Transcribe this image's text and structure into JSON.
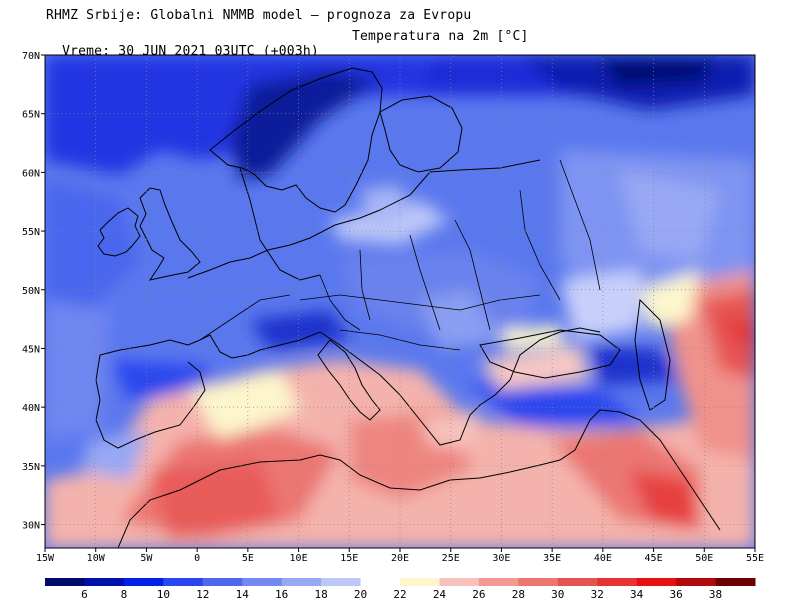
{
  "header": {
    "line1": "RHMZ Srbije: Globalni NMMB model — prognoza za Evropu",
    "line2_left": "Vreme: 30 JUN 2021 03UTC (+003h)",
    "line2_right": "Temperatura na 2m [°C]"
  },
  "map": {
    "lon_range": [
      -15,
      55
    ],
    "lat_range": [
      28,
      70
    ],
    "lon_ticks": [
      {
        "value": -15,
        "label": "15W"
      },
      {
        "value": -10,
        "label": "10W"
      },
      {
        "value": -5,
        "label": "5W"
      },
      {
        "value": 0,
        "label": "0"
      },
      {
        "value": 5,
        "label": "5E"
      },
      {
        "value": 10,
        "label": "10E"
      },
      {
        "value": 15,
        "label": "15E"
      },
      {
        "value": 20,
        "label": "20E"
      },
      {
        "value": 25,
        "label": "25E"
      },
      {
        "value": 30,
        "label": "30E"
      },
      {
        "value": 35,
        "label": "35E"
      },
      {
        "value": 40,
        "label": "40E"
      },
      {
        "value": 45,
        "label": "45E"
      },
      {
        "value": 50,
        "label": "50E"
      },
      {
        "value": 55,
        "label": "55E"
      }
    ],
    "lat_ticks": [
      {
        "value": 70,
        "label": "70N"
      },
      {
        "value": 65,
        "label": "65N"
      },
      {
        "value": 60,
        "label": "60N"
      },
      {
        "value": 55,
        "label": "55N"
      },
      {
        "value": 50,
        "label": "50N"
      },
      {
        "value": 45,
        "label": "45N"
      },
      {
        "value": 40,
        "label": "40N"
      },
      {
        "value": 35,
        "label": "35N"
      },
      {
        "value": 30,
        "label": "30N"
      }
    ],
    "grid": "dotted"
  },
  "colorbar": {
    "labels": [
      "6",
      "8",
      "10",
      "12",
      "14",
      "16",
      "18",
      "20",
      "22",
      "24",
      "26",
      "28",
      "30",
      "32",
      "34",
      "36",
      "38"
    ],
    "colors": [
      "#000a6a",
      "#0012a8",
      "#0022e6",
      "#2a46ee",
      "#5068ee",
      "#7388f0",
      "#98a8f4",
      "#bcc6f8",
      "#ffffff",
      "#fdf6cc",
      "#f7c2bc",
      "#f29a92",
      "#ec7672",
      "#e65452",
      "#e63434",
      "#e61010",
      "#b20a0a",
      "#6a0000"
    ]
  }
}
